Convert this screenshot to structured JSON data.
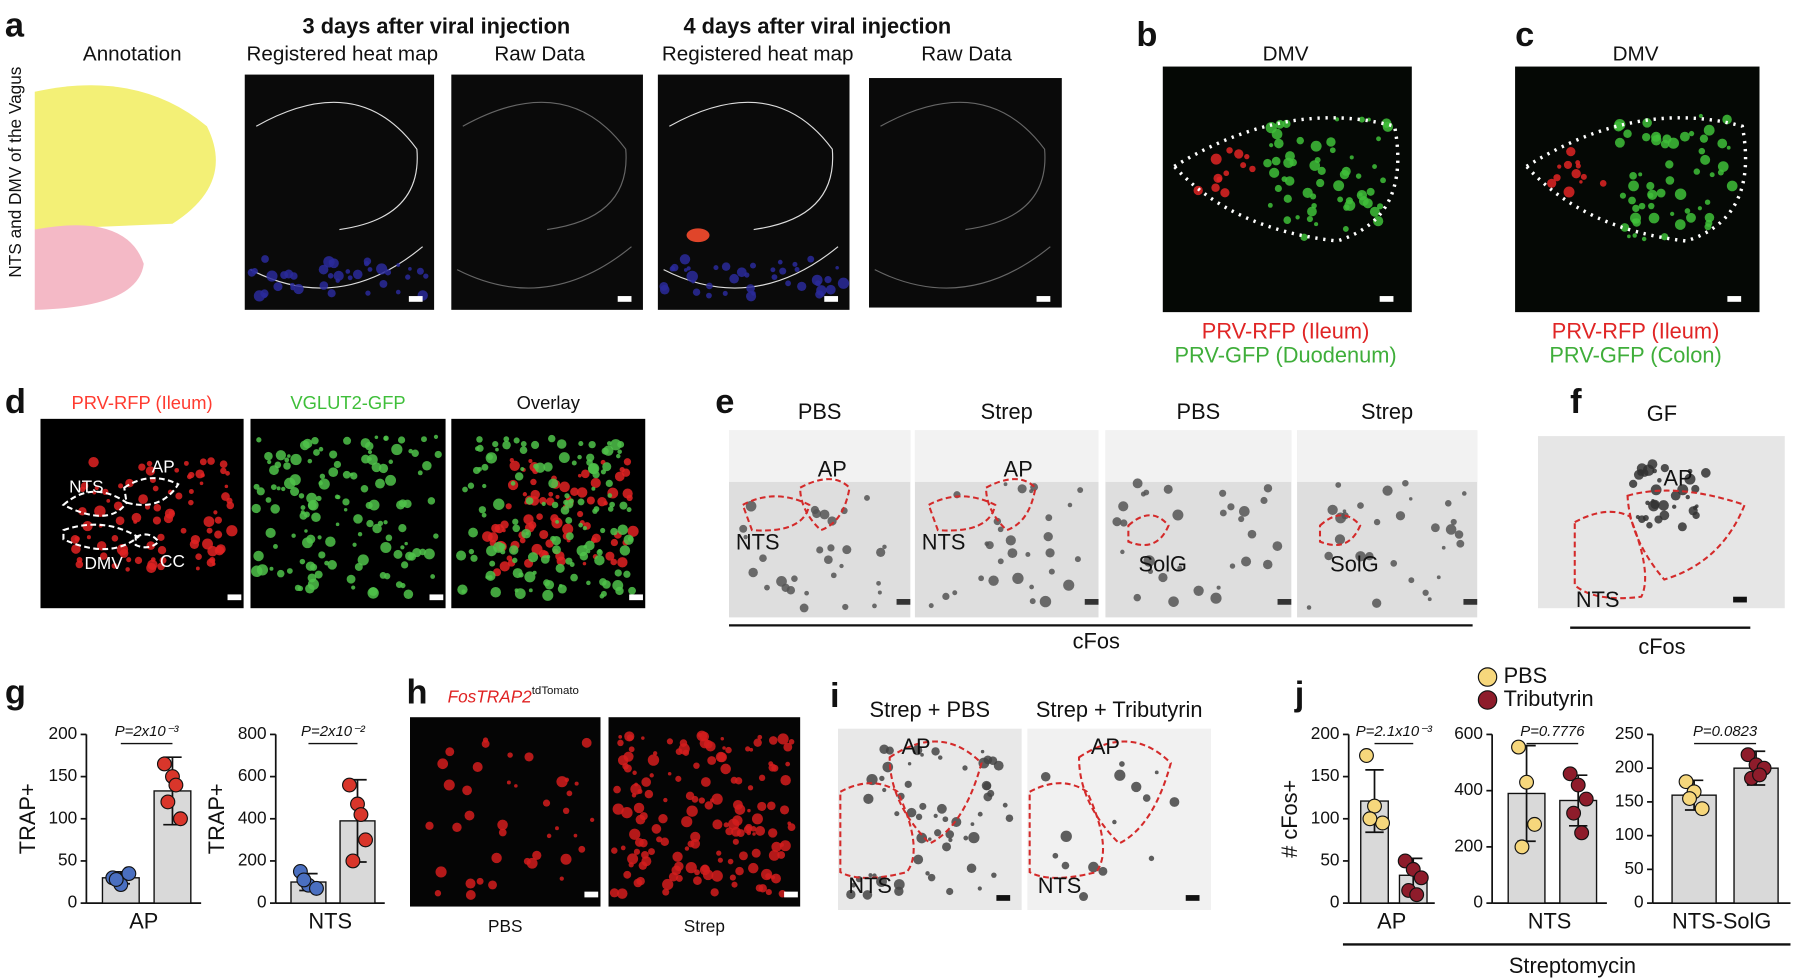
{
  "panels": {
    "a": {
      "letter": "a",
      "side_label": "NTS and DMV of the Vagus",
      "group_titles": [
        "3 days after viral injection",
        "4 days after viral injection"
      ],
      "image_titles": [
        "Annotation",
        "Registered heat map",
        "Raw Data",
        "Registered heat map",
        "Raw Data"
      ]
    },
    "b": {
      "letter": "b",
      "title": "DMV",
      "legend": [
        "PRV-RFP (Ileum)",
        "PRV-GFP (Duodenum)"
      ]
    },
    "c": {
      "letter": "c",
      "title": "DMV",
      "legend": [
        "PRV-RFP (Ileum)",
        "PRV-GFP (Colon)"
      ]
    },
    "d": {
      "letter": "d",
      "image_titles": [
        "PRV-RFP (Ileum)",
        "VGLUT2-GFP",
        "Overlay"
      ],
      "region_labels": [
        "NTS",
        "AP",
        "DMV",
        "CC"
      ]
    },
    "e": {
      "letter": "e",
      "image_titles": [
        "PBS",
        "Strep",
        "PBS",
        "Strep"
      ],
      "region_labels": [
        [
          "AP",
          "NTS"
        ],
        [
          "AP",
          "NTS"
        ],
        [
          "SolG"
        ],
        [
          "SolG"
        ]
      ],
      "footer": "cFos"
    },
    "f": {
      "letter": "f",
      "title": "GF",
      "region_labels": [
        "AP",
        "NTS"
      ],
      "footer": "cFos"
    },
    "g": {
      "letter": "g"
    },
    "h": {
      "letter": "h",
      "title": "FosTRAP2",
      "title_sup": "tdTomato",
      "image_titles": [
        "PBS",
        "Strep"
      ]
    },
    "i": {
      "letter": "i",
      "image_titles": [
        "Strep + PBS",
        "Strep + Tributyrin"
      ],
      "region_labels": [
        [
          "AP",
          "NTS"
        ],
        [
          "AP",
          "NTS"
        ]
      ]
    },
    "j": {
      "letter": "j",
      "legend": [
        {
          "name": "PBS",
          "color": "#f6d77c"
        },
        {
          "name": "Tributyrin",
          "color": "#8e1c2b"
        }
      ],
      "footer": "Streptomycin"
    }
  },
  "chart_data": [
    {
      "type": "bar",
      "ylabel": "TRAP+",
      "xlabel": "AP",
      "annotation": "P=2x10⁻³",
      "ylim": [
        0,
        200
      ],
      "yticks": [
        0,
        50,
        100,
        150,
        200
      ],
      "series": [
        {
          "color": "#4a6fc0",
          "values": [
            30
          ],
          "errors": [
            7
          ],
          "points": [
            30,
            22,
            35,
            28
          ]
        },
        {
          "color": "#d9362b",
          "values": [
            133
          ],
          "errors": [
            40
          ],
          "points": [
            165,
            150,
            100,
            120,
            140
          ]
        }
      ]
    },
    {
      "type": "bar",
      "ylabel": "TRAP+",
      "xlabel": "NTS",
      "annotation": "P=2x10⁻²",
      "ylim": [
        0,
        800
      ],
      "yticks": [
        0,
        200,
        400,
        600,
        800
      ],
      "series": [
        {
          "color": "#4a6fc0",
          "values": [
            100
          ],
          "errors": [
            40
          ],
          "points": [
            150,
            85,
            70,
            110
          ]
        },
        {
          "color": "#d9362b",
          "values": [
            390
          ],
          "errors": [
            195
          ],
          "points": [
            560,
            470,
            300,
            200,
            420
          ]
        }
      ]
    },
    {
      "type": "bar",
      "ylabel": "# cFos+",
      "xlabel": "AP",
      "annotation": "P=2.1x10⁻³",
      "ylim": [
        0,
        200
      ],
      "yticks": [
        0,
        50,
        100,
        150,
        200
      ],
      "series": [
        {
          "color": "#f6d77c",
          "values": [
            121
          ],
          "errors": [
            37
          ],
          "points": [
            175,
            115,
            95,
            100
          ]
        },
        {
          "color": "#8e1c2b",
          "values": [
            33
          ],
          "errors": [
            20
          ],
          "points": [
            50,
            40,
            30,
            15,
            10
          ]
        }
      ]
    },
    {
      "type": "bar",
      "xlabel": "NTS",
      "annotation": "P=0.7776",
      "ylim": [
        0,
        600
      ],
      "yticks": [
        0,
        200,
        400,
        600
      ],
      "series": [
        {
          "color": "#f6d77c",
          "values": [
            390
          ],
          "errors": [
            170
          ],
          "points": [
            555,
            430,
            280,
            200
          ]
        },
        {
          "color": "#8e1c2b",
          "values": [
            365
          ],
          "errors": [
            90
          ],
          "points": [
            460,
            420,
            370,
            320,
            250
          ]
        }
      ]
    },
    {
      "type": "bar",
      "xlabel": "NTS-SolG",
      "annotation": "P=0.0823",
      "ylim": [
        0,
        250
      ],
      "yticks": [
        0,
        50,
        100,
        150,
        200,
        250
      ],
      "series": [
        {
          "color": "#f6d77c",
          "values": [
            160
          ],
          "errors": [
            22
          ],
          "points": [
            180,
            165,
            140,
            155
          ]
        },
        {
          "color": "#8e1c2b",
          "values": [
            200
          ],
          "errors": [
            25
          ],
          "points": [
            220,
            205,
            200,
            185,
            190
          ]
        }
      ]
    }
  ]
}
